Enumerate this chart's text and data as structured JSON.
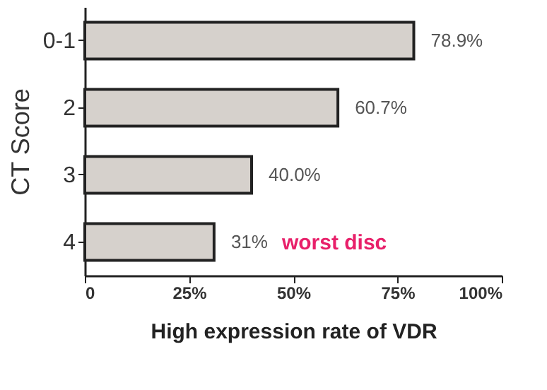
{
  "chart_data": {
    "type": "bar",
    "orientation": "horizontal",
    "categories": [
      "0-1",
      "2",
      "3",
      "4"
    ],
    "values": [
      78.9,
      60.7,
      40.0,
      31
    ],
    "value_labels": [
      "78.9%",
      "60.7%",
      "40.0%",
      "31%"
    ],
    "color": "#d6d1cc",
    "xlim": [
      0,
      100
    ],
    "xticks": [
      0,
      {
        "value": 25,
        "label": "25%"
      },
      {
        "value": 50,
        "label": "50%"
      },
      {
        "value": 75,
        "label": "75%"
      },
      {
        "value": 100,
        "label": "100%"
      }
    ],
    "xlabel": "High expression rate of VDR",
    "ylabel": "CT Score",
    "annotations": [
      "worst disc"
    ],
    "grid": false
  }
}
